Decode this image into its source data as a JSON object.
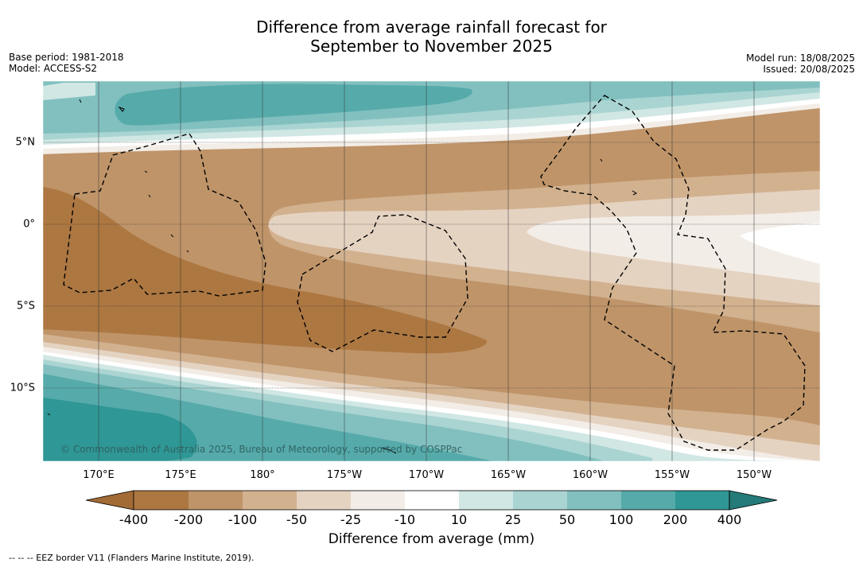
{
  "title": {
    "line1": "Difference from average rainfall forecast for",
    "line2": "September to November 2025"
  },
  "meta": {
    "base_period": "Base period: 1981-2018",
    "model": "Model: ACCESS-S2",
    "model_run": "Model run: 18/08/2025",
    "issued": "Issued: 20/08/2025"
  },
  "axes": {
    "lon_labels": [
      "170°E",
      "175°E",
      "180°",
      "175°W",
      "170°W",
      "165°W",
      "160°W",
      "155°W",
      "150°W"
    ],
    "lat_labels": [
      "5°N",
      "0°",
      "5°S",
      "10°S"
    ]
  },
  "colorbar": {
    "title": "Difference from average (mm)",
    "ticks": [
      "-400",
      "-200",
      "-100",
      "-50",
      "-25",
      "-10",
      "10",
      "25",
      "50",
      "100",
      "200",
      "400"
    ],
    "colors": [
      "#a26a35",
      "#ad7741",
      "#bf9469",
      "#d2b18f",
      "#e5d3c2",
      "#f3ede7",
      "#ffffff",
      "#d0e7e4",
      "#a9d4d2",
      "#81c0bf",
      "#56aaaa",
      "#2f9795",
      "#247a78"
    ]
  },
  "copyright": "© Commonwealth of Australia 2025, Bureau of Meteorology, supported by COSPPac",
  "footer": "--  --  -- EEZ border V11 (Flanders Marine Institute, 2019)."
}
